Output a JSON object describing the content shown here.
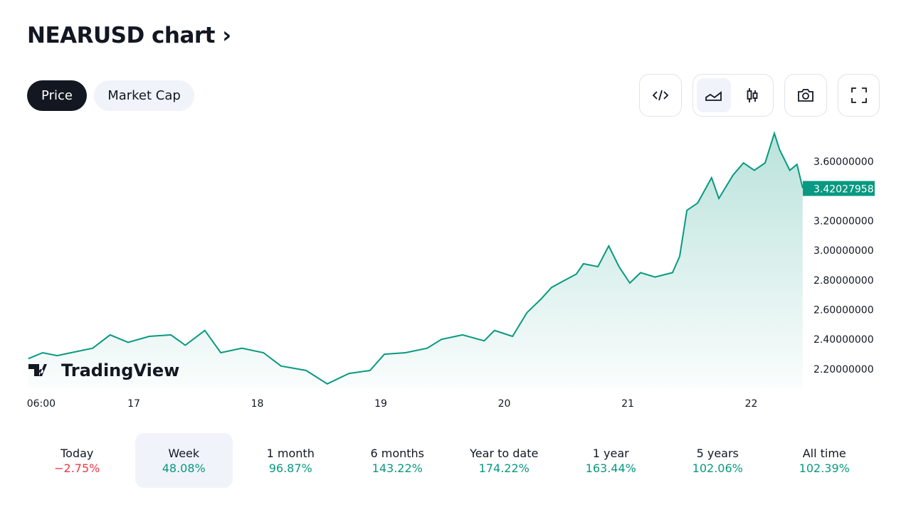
{
  "header": {
    "title": "NEARUSD chart",
    "chevron": "›"
  },
  "tabs": [
    {
      "label": "Price",
      "active": true
    },
    {
      "label": "Market Cap",
      "active": false
    }
  ],
  "toolbar": {
    "icons": [
      "embed-code-icon",
      "area-chart-icon",
      "candlestick-icon",
      "camera-icon",
      "fullscreen-icon"
    ],
    "active": "area-chart-icon"
  },
  "colors": {
    "up": "#089981",
    "down": "#f23645",
    "line": "#089981"
  },
  "logo": "TradingView",
  "chart_data": {
    "type": "area",
    "title": "NEARUSD",
    "xlabel": "",
    "ylabel": "",
    "x_unit": "hours relative to day 17 00:00",
    "x": [
      -20.5,
      -17.7,
      -14.9,
      -12.2,
      -8.0,
      -4.6,
      -1.1,
      3.0,
      7.2,
      10.0,
      13.8,
      16.9,
      21.0,
      25.2,
      28.6,
      33.5,
      37.6,
      41.8,
      45.9,
      48.7,
      52.8,
      57.0,
      59.8,
      63.9,
      68.1,
      70.1,
      73.6,
      76.4,
      79.1,
      81.2,
      83.3,
      86.0,
      87.4,
      90.2,
      92.3,
      94.3,
      96.4,
      98.5,
      101.3,
      104.7,
      106.1,
      107.5,
      109.6,
      112.3,
      113.7,
      116.5,
      118.5,
      120.6,
      122.7,
      124.5,
      125.5,
      127.5,
      128.9,
      130.0
    ],
    "y": [
      2.27,
      2.31,
      2.29,
      2.31,
      2.34,
      2.43,
      2.38,
      2.42,
      2.43,
      2.36,
      2.46,
      2.31,
      2.34,
      2.31,
      2.22,
      2.19,
      2.1,
      2.17,
      2.19,
      2.3,
      2.31,
      2.34,
      2.4,
      2.43,
      2.39,
      2.46,
      2.42,
      2.58,
      2.67,
      2.75,
      2.79,
      2.84,
      2.91,
      2.89,
      3.03,
      2.89,
      2.78,
      2.85,
      2.82,
      2.85,
      2.96,
      3.27,
      3.32,
      3.49,
      3.35,
      3.51,
      3.59,
      3.54,
      3.59,
      3.79,
      3.68,
      3.54,
      3.58,
      3.42
    ],
    "last_price": "3.42027958",
    "ylim": [
      2.1,
      3.8
    ],
    "y_ticks": [
      "2.20000000",
      "2.40000000",
      "2.60000000",
      "2.80000000",
      "3.00000000",
      "3.20000000",
      "3.60000000"
    ],
    "y_tick_values": [
      2.2,
      2.4,
      2.6,
      2.8,
      3.0,
      3.2,
      3.6
    ],
    "x_ticks": [
      {
        "label": "06:00",
        "at": -18
      },
      {
        "label": "17",
        "at": 0
      },
      {
        "label": "18",
        "at": 24
      },
      {
        "label": "19",
        "at": 48
      },
      {
        "label": "20",
        "at": 72
      },
      {
        "label": "21",
        "at": 96
      },
      {
        "label": "22",
        "at": 120
      }
    ]
  },
  "periods": [
    {
      "label": "Today",
      "value": "−2.75%",
      "dir": "down"
    },
    {
      "label": "Week",
      "value": "48.08%",
      "dir": "up",
      "active": true
    },
    {
      "label": "1 month",
      "value": "96.87%",
      "dir": "up"
    },
    {
      "label": "6 months",
      "value": "143.22%",
      "dir": "up"
    },
    {
      "label": "Year to date",
      "value": "174.22%",
      "dir": "up"
    },
    {
      "label": "1 year",
      "value": "163.44%",
      "dir": "up"
    },
    {
      "label": "5 years",
      "value": "102.06%",
      "dir": "up"
    },
    {
      "label": "All time",
      "value": "102.39%",
      "dir": "up"
    }
  ]
}
